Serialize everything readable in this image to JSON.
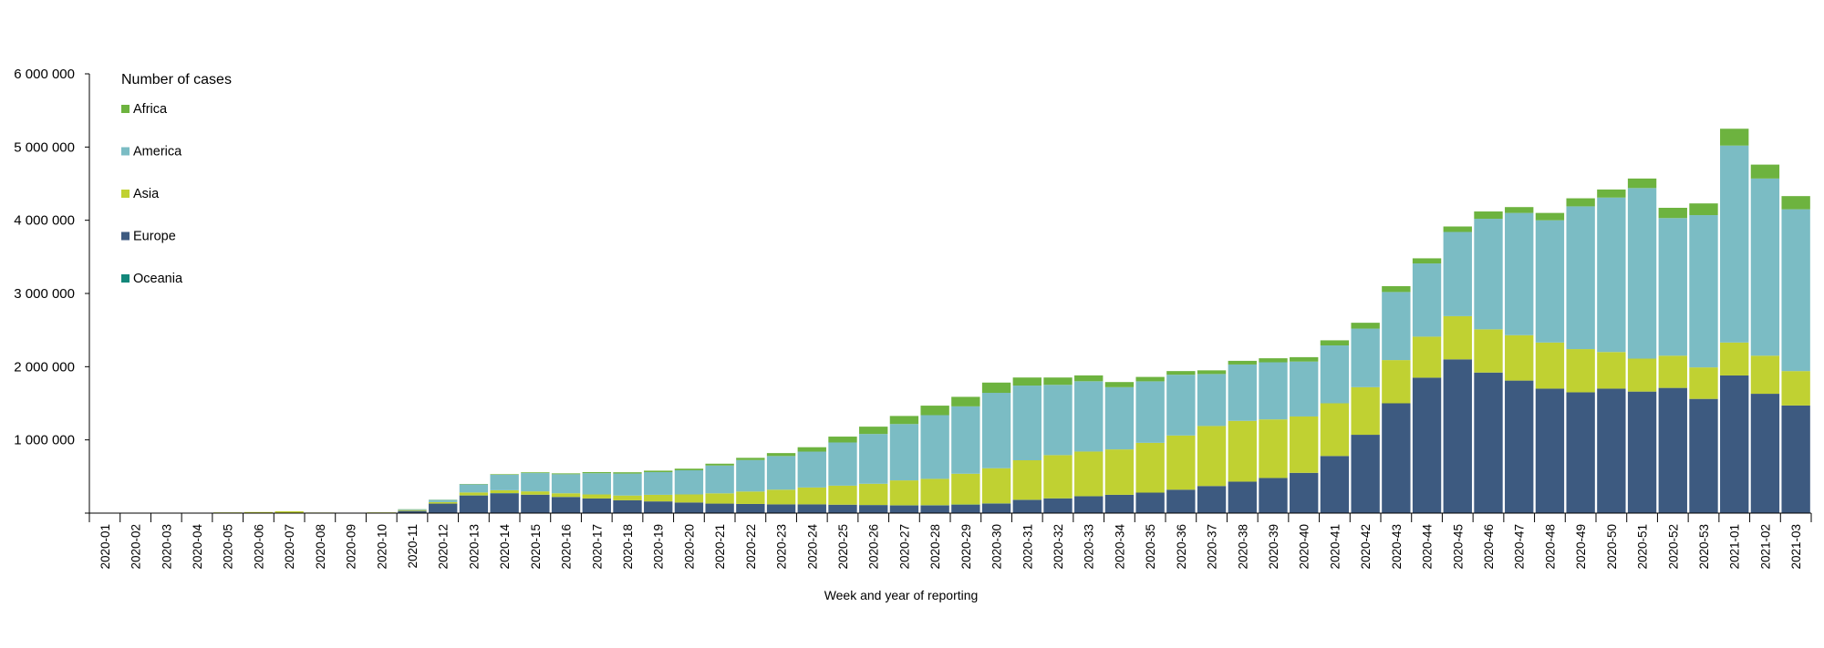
{
  "chart_data": {
    "type": "bar",
    "stacked": true,
    "title": "",
    "legend_title": "Number of cases",
    "legend_position": "top-left",
    "xlabel": "Week and year of reporting",
    "ylabel": "",
    "ylim": [
      0,
      6000000
    ],
    "yticks": [
      0,
      1000000,
      2000000,
      3000000,
      4000000,
      5000000,
      6000000
    ],
    "ytick_labels": [
      "",
      "1 000 000",
      "2 000 000",
      "3 000 000",
      "4 000 000",
      "5 000 000",
      "6 000 000"
    ],
    "grid": false,
    "categories": [
      "2020-01",
      "2020-02",
      "2020-03",
      "2020-04",
      "2020-05",
      "2020-06",
      "2020-07",
      "2020-08",
      "2020-09",
      "2020-10",
      "2020-11",
      "2020-12",
      "2020-13",
      "2020-14",
      "2020-15",
      "2020-16",
      "2020-17",
      "2020-18",
      "2020-19",
      "2020-20",
      "2020-21",
      "2020-22",
      "2020-23",
      "2020-24",
      "2020-25",
      "2020-26",
      "2020-27",
      "2020-28",
      "2020-29",
      "2020-30",
      "2020-31",
      "2020-32",
      "2020-33",
      "2020-34",
      "2020-35",
      "2020-36",
      "2020-37",
      "2020-38",
      "2020-39",
      "2020-40",
      "2020-41",
      "2020-42",
      "2020-43",
      "2020-44",
      "2020-45",
      "2020-46",
      "2020-47",
      "2020-48",
      "2020-49",
      "2020-50",
      "2020-51",
      "2020-52",
      "2020-53",
      "2021-01",
      "2021-02",
      "2021-03"
    ],
    "series": [
      {
        "name": "Europe",
        "color": "#3d5a80",
        "values": [
          0,
          0,
          0,
          0,
          0,
          0,
          0,
          0,
          0,
          2000,
          30000,
          130000,
          240000,
          270000,
          250000,
          220000,
          200000,
          175000,
          160000,
          145000,
          130000,
          125000,
          120000,
          120000,
          115000,
          110000,
          105000,
          105000,
          115000,
          130000,
          180000,
          200000,
          230000,
          250000,
          280000,
          320000,
          370000,
          430000,
          480000,
          550000,
          780000,
          1070000,
          1500000,
          1850000,
          2100000,
          1920000,
          1810000,
          1700000,
          1650000,
          1700000,
          1660000,
          1710000,
          1560000,
          1880000,
          1630000,
          1470000
        ]
      },
      {
        "name": "Oceania",
        "color": "#12877a",
        "values": [
          0,
          0,
          0,
          0,
          0,
          0,
          0,
          0,
          0,
          0,
          0,
          0,
          2000,
          3000,
          2000,
          1000,
          0,
          0,
          0,
          0,
          0,
          0,
          0,
          0,
          0,
          1000,
          2000,
          3000,
          3000,
          3000,
          2000,
          2000,
          1000,
          0,
          0,
          0,
          0,
          0,
          0,
          0,
          0,
          0,
          0,
          0,
          0,
          0,
          0,
          0,
          0,
          0,
          0,
          0,
          0,
          0,
          0,
          0
        ]
      },
      {
        "name": "Asia",
        "color": "#c0d132",
        "values": [
          500,
          1000,
          2000,
          5000,
          10000,
          15000,
          25000,
          8000,
          6000,
          8000,
          12000,
          20000,
          40000,
          40000,
          45000,
          50000,
          55000,
          65000,
          90000,
          110000,
          140000,
          170000,
          200000,
          230000,
          260000,
          290000,
          340000,
          360000,
          420000,
          480000,
          540000,
          590000,
          610000,
          620000,
          680000,
          740000,
          820000,
          830000,
          800000,
          770000,
          720000,
          650000,
          590000,
          560000,
          590000,
          590000,
          620000,
          630000,
          590000,
          500000,
          450000,
          440000,
          430000,
          450000,
          520000,
          470000
        ]
      },
      {
        "name": "America",
        "color": "#7bbcc4",
        "values": [
          0,
          0,
          0,
          0,
          0,
          0,
          0,
          0,
          0,
          0,
          10000,
          30000,
          110000,
          210000,
          250000,
          260000,
          290000,
          300000,
          310000,
          330000,
          380000,
          430000,
          460000,
          490000,
          590000,
          680000,
          770000,
          870000,
          920000,
          1030000,
          1020000,
          960000,
          960000,
          850000,
          840000,
          830000,
          710000,
          770000,
          780000,
          750000,
          790000,
          800000,
          930000,
          1000000,
          1150000,
          1510000,
          1670000,
          1670000,
          1950000,
          2110000,
          2330000,
          1880000,
          2080000,
          2690000,
          2420000,
          2210000
        ]
      },
      {
        "name": "Africa",
        "color": "#6db33f",
        "values": [
          0,
          0,
          0,
          0,
          0,
          0,
          0,
          0,
          0,
          0,
          2000,
          3000,
          5000,
          8000,
          10000,
          12000,
          15000,
          18000,
          20000,
          22000,
          25000,
          30000,
          40000,
          60000,
          80000,
          100000,
          110000,
          130000,
          130000,
          140000,
          110000,
          100000,
          80000,
          70000,
          60000,
          50000,
          50000,
          50000,
          55000,
          60000,
          70000,
          80000,
          80000,
          70000,
          75000,
          100000,
          80000,
          100000,
          110000,
          110000,
          130000,
          140000,
          160000,
          230000,
          190000,
          180000
        ]
      }
    ],
    "legend_order": [
      "Africa",
      "America",
      "Asia",
      "Europe",
      "Oceania"
    ]
  }
}
